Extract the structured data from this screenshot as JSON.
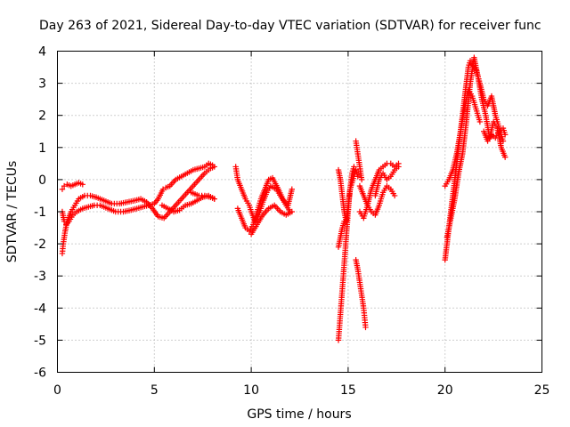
{
  "chart_data": {
    "type": "scatter",
    "title": "Day 263 of 2021, Sidereal Day-to-day VTEC variation (SDTVAR) for receiver func",
    "xlabel": "GPS time / hours",
    "ylabel": "SDTVAR / TECUs",
    "xlim": [
      0,
      25
    ],
    "ylim": [
      -6,
      4
    ],
    "xticks": [
      0,
      5,
      10,
      15,
      20,
      25
    ],
    "yticks": [
      -6,
      -5,
      -4,
      -3,
      -2,
      -1,
      0,
      1,
      2,
      3,
      4
    ],
    "grid": true,
    "marker": "+",
    "series": [
      {
        "name": "SDTVAR",
        "color": "#ff0000",
        "tracks": [
          {
            "t": [
              0.25,
              0.35,
              0.5,
              0.7,
              0.9,
              1.1,
              1.3
            ],
            "v": [
              -0.3,
              -0.2,
              -0.15,
              -0.2,
              -0.15,
              -0.1,
              -0.15
            ]
          },
          {
            "t": [
              0.25,
              0.35,
              0.45,
              0.6,
              0.8,
              1.0,
              1.3,
              1.6,
              1.9,
              2.2,
              2.6,
              3.0,
              3.4,
              3.8,
              4.1,
              4.4,
              4.7,
              5.0,
              5.2,
              5.45,
              5.6,
              5.8,
              6.1,
              6.4,
              6.7,
              7.0,
              7.3,
              7.6,
              7.8,
              8.0
            ],
            "v": [
              -1.0,
              -1.3,
              -1.4,
              -1.3,
              -1.1,
              -1.0,
              -0.9,
              -0.85,
              -0.8,
              -0.8,
              -0.9,
              -1.0,
              -1.0,
              -0.95,
              -0.9,
              -0.85,
              -0.8,
              -0.75,
              -0.6,
              -0.3,
              -0.25,
              -0.2,
              0.0,
              0.1,
              0.2,
              0.3,
              0.35,
              0.4,
              0.5,
              0.45
            ]
          },
          {
            "t": [
              0.25,
              0.3,
              0.4,
              0.5,
              0.7,
              0.9,
              1.1,
              1.4,
              1.7,
              2.0,
              2.4,
              2.8,
              3.2,
              3.6,
              4.0,
              4.3,
              4.6,
              4.9,
              5.2,
              5.5,
              5.8,
              6.1,
              6.4,
              6.7,
              7.0,
              7.3,
              7.6,
              7.9,
              8.1
            ],
            "v": [
              -2.3,
              -2.0,
              -1.6,
              -1.3,
              -1.0,
              -0.8,
              -0.6,
              -0.5,
              -0.5,
              -0.55,
              -0.65,
              -0.75,
              -0.75,
              -0.7,
              -0.65,
              -0.6,
              -0.7,
              -0.9,
              -1.15,
              -1.2,
              -1.0,
              -0.8,
              -0.6,
              -0.4,
              -0.2,
              0.0,
              0.2,
              0.35,
              0.4
            ]
          },
          {
            "t": [
              5.4,
              5.7,
              6.0,
              6.3,
              6.6,
              6.9,
              7.2,
              7.5,
              7.8,
              8.1
            ],
            "v": [
              -0.8,
              -0.9,
              -1.0,
              -0.95,
              -0.8,
              -0.75,
              -0.65,
              -0.55,
              -0.5,
              -0.6
            ]
          },
          {
            "t": [
              6.9,
              7.1,
              7.3,
              7.6,
              7.9,
              8.1
            ],
            "v": [
              -0.4,
              -0.45,
              -0.5,
              -0.5,
              -0.55,
              -0.6
            ]
          },
          {
            "t": [
              9.2,
              9.3,
              9.5,
              9.7,
              9.9,
              10.0,
              10.2,
              10.4,
              10.6,
              10.8,
              11.0,
              11.3,
              11.6,
              11.9,
              12.1
            ],
            "v": [
              0.4,
              0.0,
              -0.3,
              -0.6,
              -0.8,
              -1.0,
              -1.3,
              -1.1,
              -0.7,
              -0.4,
              -0.2,
              -0.3,
              -0.6,
              -0.8,
              -0.3
            ]
          },
          {
            "t": [
              9.3,
              9.5,
              9.7,
              9.9,
              10.1,
              10.3,
              10.5,
              10.7,
              10.9,
              11.1,
              11.4,
              11.7,
              12.0
            ],
            "v": [
              -0.9,
              -1.2,
              -1.5,
              -1.6,
              -1.4,
              -1.0,
              -0.6,
              -0.3,
              0.0,
              0.05,
              -0.3,
              -0.7,
              -1.0
            ]
          },
          {
            "t": [
              10.0,
              10.3,
              10.6,
              10.9,
              11.2,
              11.5,
              11.8,
              12.1
            ],
            "v": [
              -1.7,
              -1.4,
              -1.1,
              -0.9,
              -0.8,
              -1.0,
              -1.1,
              -1.0
            ]
          },
          {
            "t": [
              14.5,
              14.6,
              14.7,
              14.8,
              14.9,
              15.0,
              15.1,
              15.2,
              15.3,
              15.4,
              15.5
            ],
            "v": [
              0.3,
              0.0,
              -0.5,
              -1.0,
              -1.3,
              -0.8,
              -0.3,
              0.2,
              0.4,
              0.3,
              0.1
            ]
          },
          {
            "t": [
              14.5,
              14.55,
              14.6,
              14.65,
              14.7,
              14.75,
              14.8,
              14.85,
              14.9,
              14.95,
              15.0,
              15.05,
              15.1,
              15.2,
              15.3,
              15.4
            ],
            "v": [
              -5.0,
              -4.6,
              -4.2,
              -3.8,
              -3.4,
              -3.0,
              -2.6,
              -2.2,
              -1.8,
              -1.4,
              -1.0,
              -0.6,
              -0.3,
              -0.1,
              0.1,
              0.3
            ]
          },
          {
            "t": [
              14.5,
              14.6,
              14.7,
              14.8
            ],
            "v": [
              -2.1,
              -1.8,
              -1.5,
              -1.3
            ]
          },
          {
            "t": [
              15.4,
              15.45,
              15.5,
              15.55,
              15.6,
              15.65,
              15.7
            ],
            "v": [
              1.2,
              1.0,
              0.8,
              0.6,
              0.4,
              0.2,
              0.0
            ]
          },
          {
            "t": [
              15.4,
              15.5,
              15.55,
              15.6,
              15.65,
              15.7,
              15.75,
              15.8,
              15.85,
              15.9
            ],
            "v": [
              -2.5,
              -2.8,
              -3.0,
              -3.2,
              -3.4,
              -3.6,
              -3.8,
              -4.0,
              -4.3,
              -4.6
            ]
          },
          {
            "t": [
              15.6,
              15.8,
              16.0,
              16.2,
              16.4,
              16.6,
              16.8,
              17.0,
              17.2,
              17.4,
              17.6
            ],
            "v": [
              -1.0,
              -1.2,
              -0.8,
              -0.3,
              0.0,
              0.3,
              0.4,
              0.5,
              0.5,
              0.4,
              0.5
            ]
          },
          {
            "t": [
              15.6,
              15.8,
              16.0,
              16.2,
              16.4,
              16.6,
              16.8,
              17.0,
              17.2,
              17.4
            ],
            "v": [
              -0.2,
              -0.5,
              -0.8,
              -1.0,
              -1.1,
              -0.8,
              -0.4,
              -0.2,
              -0.3,
              -0.5
            ]
          },
          {
            "t": [
              16.4,
              16.6,
              16.8,
              17.0,
              17.2,
              17.4,
              17.6
            ],
            "v": [
              -0.5,
              0.0,
              0.2,
              0.0,
              0.1,
              0.3,
              0.4
            ]
          },
          {
            "t": [
              20.0,
              20.1,
              20.2,
              20.3,
              20.4,
              20.5,
              20.6,
              20.7,
              20.8,
              20.9,
              21.0,
              21.1,
              21.2,
              21.3,
              21.4,
              21.6,
              21.8,
              22.0,
              22.2,
              22.4,
              22.6,
              22.8,
              23.0
            ],
            "v": [
              -2.5,
              -2.0,
              -1.5,
              -1.0,
              -0.5,
              0.0,
              0.5,
              1.0,
              1.5,
              2.0,
              2.5,
              3.0,
              3.5,
              3.7,
              3.6,
              3.4,
              3.0,
              2.5,
              2.3,
              2.6,
              2.0,
              1.6,
              1.2
            ]
          },
          {
            "t": [
              20.1,
              20.3,
              20.5,
              20.7,
              20.9,
              21.1,
              21.3,
              21.5,
              21.7,
              21.9,
              22.1,
              22.3,
              22.5,
              22.7,
              22.9,
              23.1
            ],
            "v": [
              -1.8,
              -1.2,
              -0.6,
              0.2,
              0.8,
              1.8,
              3.0,
              3.8,
              3.2,
              2.5,
              2.0,
              1.3,
              1.8,
              1.6,
              1.0,
              0.7
            ]
          },
          {
            "t": [
              20.0,
              20.2,
              20.4,
              20.6,
              20.8,
              21.0,
              21.2,
              21.4,
              21.6,
              21.8
            ],
            "v": [
              -0.2,
              0.0,
              0.3,
              0.8,
              1.5,
              2.2,
              2.8,
              2.6,
              2.2,
              1.8
            ]
          },
          {
            "t": [
              22.0,
              22.2,
              22.4,
              22.6,
              22.8,
              23.0,
              23.1
            ],
            "v": [
              1.5,
              1.2,
              1.4,
              1.3,
              1.5,
              1.6,
              1.4
            ]
          }
        ]
      }
    ]
  }
}
